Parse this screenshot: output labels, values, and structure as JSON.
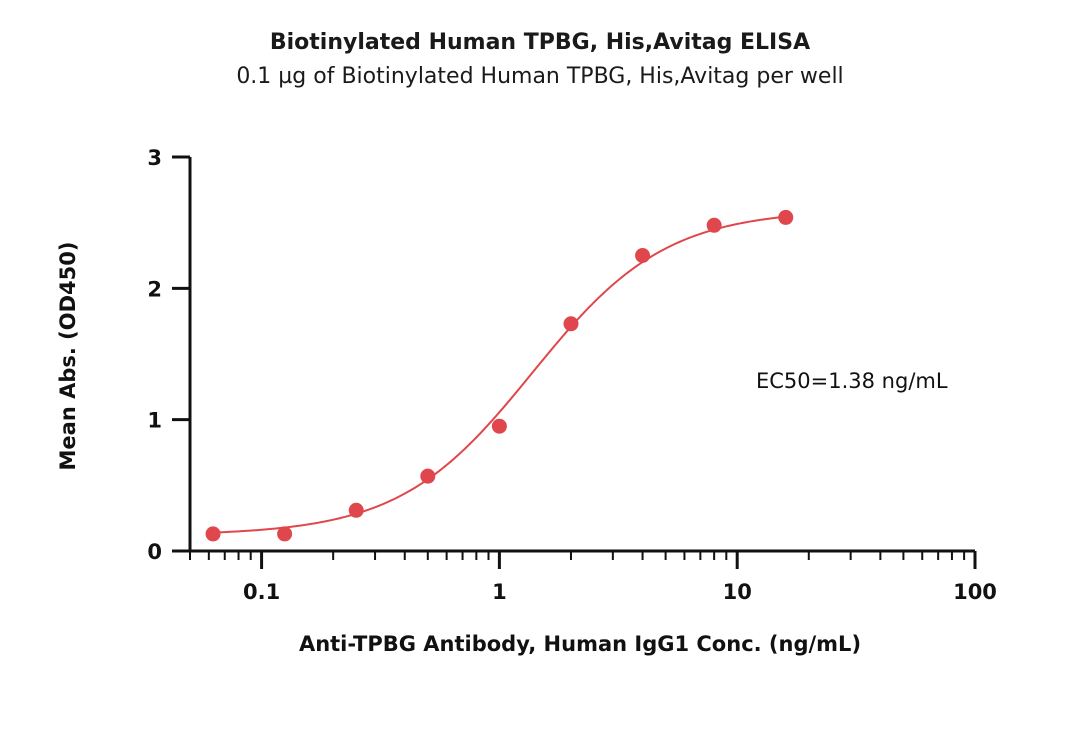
{
  "chart_data": {
    "type": "scatter",
    "title": "Biotinylated Human TPBG, His,Avitag ELISA",
    "subtitle": "0.1 µg of Biotinylated Human TPBG, His,Avitag per well",
    "xlabel": "Anti-TPBG Antibody, Human IgG1 Conc. (ng/mL)",
    "ylabel": "Mean Abs. (OD450)",
    "x_scale": "log",
    "xlim": [
      0.05,
      100
    ],
    "ylim": [
      0,
      3
    ],
    "x_ticks": [
      "0.1",
      "1",
      "10",
      "100"
    ],
    "y_ticks": [
      "0",
      "1",
      "2",
      "3"
    ],
    "grid": false,
    "annotation": "EC50=1.38 ng/mL",
    "series": [
      {
        "color": "#e0474c",
        "x": [
          0.0625,
          0.125,
          0.25,
          0.5,
          1,
          2,
          4,
          8,
          16
        ],
        "y": [
          0.13,
          0.13,
          0.31,
          0.57,
          0.95,
          1.73,
          2.25,
          2.48,
          2.54
        ]
      }
    ],
    "fit": {
      "color": "#e0474c",
      "bottom": 0.12,
      "top": 2.6,
      "ec50": 1.38,
      "hill": 1.55
    }
  }
}
